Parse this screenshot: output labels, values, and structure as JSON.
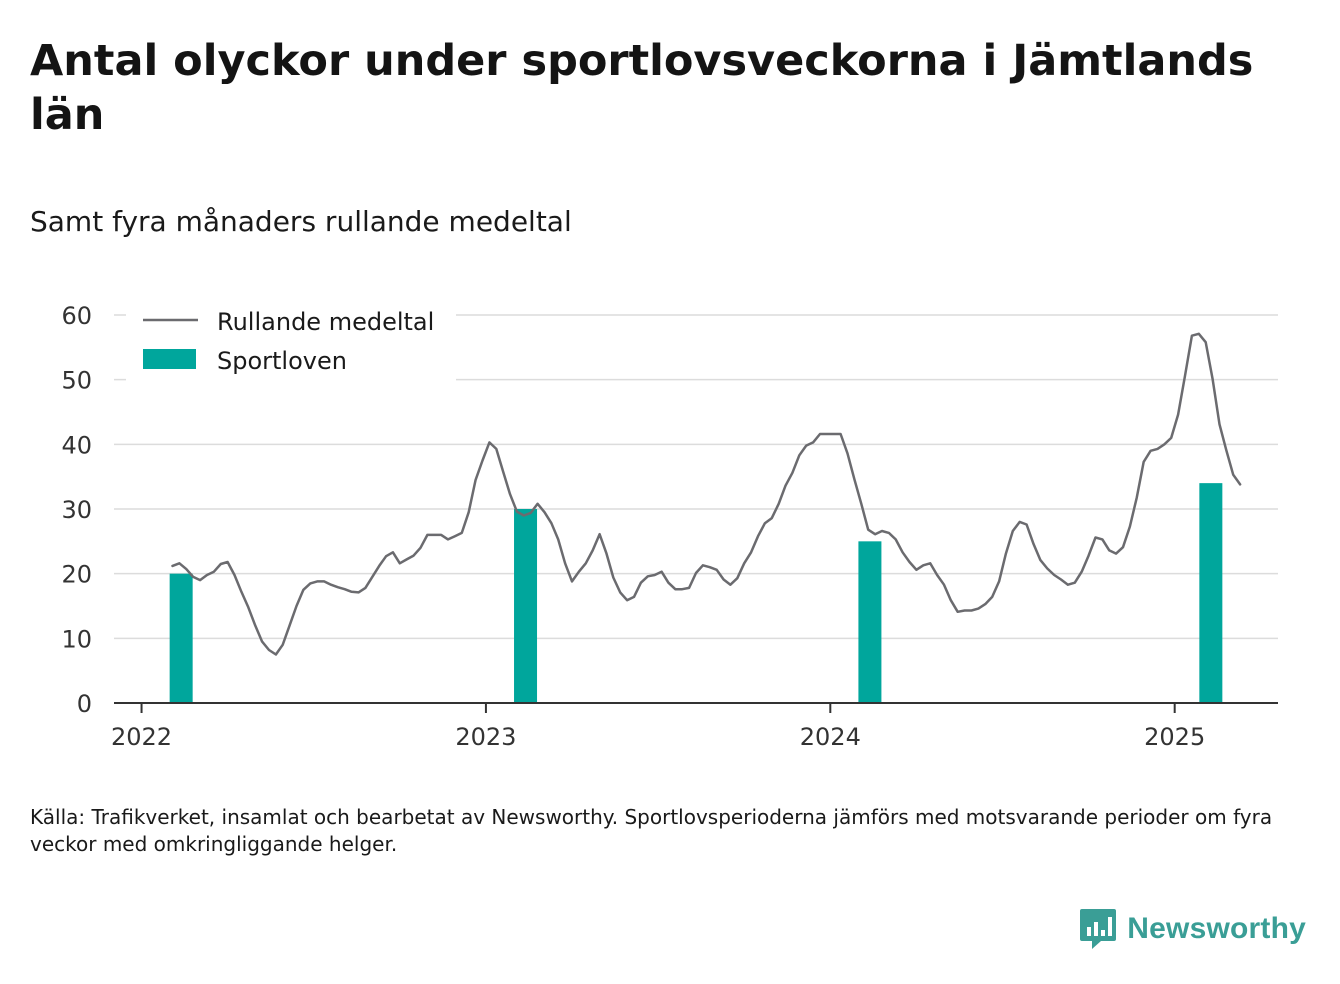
{
  "title": "Antal olyckor under sportlovsveckorna i Jämtlands län",
  "subtitle": "Samt fyra månaders rullande medeltal",
  "source": "Källa: Trafikverket, insamlat och bearbetat av Newsworthy. Sportlovsperioderna jämförs med motsvarande perioder om fyra veckor med omkringliggande helger.",
  "brand": "Newsworthy",
  "colors": {
    "line": "#6b6b6f",
    "bar": "#00a69c",
    "grid": "#dcdcdc",
    "axis": "#333333",
    "brand": "#3a9e96"
  },
  "icons": {
    "brand_logo": "bar-chart-speech-bubble-icon"
  },
  "chart_data": {
    "type": "line",
    "legend": {
      "placement": "top-left",
      "entries": [
        "Rullande medeltal",
        "Sportloven"
      ]
    },
    "grid": true,
    "ylim": [
      0,
      60
    ],
    "yticks": [
      0,
      10,
      20,
      30,
      40,
      50,
      60
    ],
    "xlim": [
      2021.92,
      2025.3
    ],
    "xticks": [
      2022,
      2023,
      2024,
      2025
    ],
    "xtick_labels": [
      "2022",
      "2023",
      "2024",
      "2025"
    ],
    "series": [
      {
        "name": "Rullande medeltal",
        "type": "line",
        "points": [
          [
            2022.09,
            21.2
          ],
          [
            2022.11,
            21.6
          ],
          [
            2022.13,
            20.7
          ],
          [
            2022.15,
            19.5
          ],
          [
            2022.17,
            19.0
          ],
          [
            2022.19,
            19.8
          ],
          [
            2022.21,
            20.3
          ],
          [
            2022.23,
            21.5
          ],
          [
            2022.25,
            21.8
          ],
          [
            2022.27,
            19.8
          ],
          [
            2022.29,
            17.2
          ],
          [
            2022.31,
            14.8
          ],
          [
            2022.33,
            12.0
          ],
          [
            2022.35,
            9.5
          ],
          [
            2022.37,
            8.2
          ],
          [
            2022.39,
            7.5
          ],
          [
            2022.41,
            9.0
          ],
          [
            2022.43,
            12.0
          ],
          [
            2022.45,
            15.0
          ],
          [
            2022.47,
            17.5
          ],
          [
            2022.49,
            18.5
          ],
          [
            2022.51,
            18.8
          ],
          [
            2022.53,
            18.8
          ],
          [
            2022.55,
            18.3
          ],
          [
            2022.57,
            17.9
          ],
          [
            2022.59,
            17.6
          ],
          [
            2022.61,
            17.2
          ],
          [
            2022.63,
            17.1
          ],
          [
            2022.65,
            17.8
          ],
          [
            2022.67,
            19.5
          ],
          [
            2022.69,
            21.2
          ],
          [
            2022.71,
            22.7
          ],
          [
            2022.73,
            23.3
          ],
          [
            2022.75,
            21.6
          ],
          [
            2022.77,
            22.2
          ],
          [
            2022.79,
            22.8
          ],
          [
            2022.81,
            24.0
          ],
          [
            2022.83,
            26.0
          ],
          [
            2022.85,
            26.0
          ],
          [
            2022.87,
            26.0
          ],
          [
            2022.89,
            25.3
          ],
          [
            2022.91,
            25.8
          ],
          [
            2022.93,
            26.3
          ],
          [
            2022.95,
            29.5
          ],
          [
            2022.97,
            34.5
          ],
          [
            2022.99,
            37.5
          ],
          [
            2023.01,
            40.3
          ],
          [
            2023.03,
            39.3
          ],
          [
            2023.05,
            35.8
          ],
          [
            2023.07,
            32.3
          ],
          [
            2023.09,
            29.6
          ],
          [
            2023.11,
            29.0
          ],
          [
            2023.13,
            29.4
          ],
          [
            2023.15,
            30.8
          ],
          [
            2023.17,
            29.5
          ],
          [
            2023.19,
            27.8
          ],
          [
            2023.21,
            25.3
          ],
          [
            2023.23,
            21.6
          ],
          [
            2023.25,
            18.8
          ],
          [
            2023.27,
            20.3
          ],
          [
            2023.29,
            21.6
          ],
          [
            2023.31,
            23.6
          ],
          [
            2023.33,
            26.1
          ],
          [
            2023.35,
            23.1
          ],
          [
            2023.37,
            19.4
          ],
          [
            2023.39,
            17.1
          ],
          [
            2023.41,
            15.9
          ],
          [
            2023.43,
            16.4
          ],
          [
            2023.45,
            18.6
          ],
          [
            2023.47,
            19.6
          ],
          [
            2023.49,
            19.8
          ],
          [
            2023.51,
            20.3
          ],
          [
            2023.53,
            18.6
          ],
          [
            2023.55,
            17.6
          ],
          [
            2023.57,
            17.6
          ],
          [
            2023.59,
            17.8
          ],
          [
            2023.61,
            20.1
          ],
          [
            2023.63,
            21.3
          ],
          [
            2023.65,
            21.0
          ],
          [
            2023.67,
            20.6
          ],
          [
            2023.69,
            19.1
          ],
          [
            2023.71,
            18.3
          ],
          [
            2023.73,
            19.3
          ],
          [
            2023.75,
            21.6
          ],
          [
            2023.77,
            23.3
          ],
          [
            2023.79,
            25.8
          ],
          [
            2023.81,
            27.8
          ],
          [
            2023.83,
            28.6
          ],
          [
            2023.85,
            30.8
          ],
          [
            2023.87,
            33.6
          ],
          [
            2023.89,
            35.6
          ],
          [
            2023.91,
            38.3
          ],
          [
            2023.93,
            39.8
          ],
          [
            2023.95,
            40.3
          ],
          [
            2023.97,
            41.6
          ],
          [
            2023.99,
            41.6
          ],
          [
            2024.01,
            41.6
          ],
          [
            2024.03,
            41.6
          ],
          [
            2024.05,
            38.6
          ],
          [
            2024.07,
            34.6
          ],
          [
            2024.09,
            30.8
          ],
          [
            2024.11,
            26.8
          ],
          [
            2024.13,
            26.1
          ],
          [
            2024.15,
            26.6
          ],
          [
            2024.17,
            26.3
          ],
          [
            2024.19,
            25.3
          ],
          [
            2024.21,
            23.3
          ],
          [
            2024.23,
            21.8
          ],
          [
            2024.25,
            20.6
          ],
          [
            2024.27,
            21.3
          ],
          [
            2024.29,
            21.6
          ],
          [
            2024.31,
            19.8
          ],
          [
            2024.33,
            18.3
          ],
          [
            2024.35,
            15.9
          ],
          [
            2024.37,
            14.1
          ],
          [
            2024.39,
            14.3
          ],
          [
            2024.41,
            14.3
          ],
          [
            2024.43,
            14.6
          ],
          [
            2024.45,
            15.3
          ],
          [
            2024.47,
            16.4
          ],
          [
            2024.49,
            18.8
          ],
          [
            2024.51,
            23.1
          ],
          [
            2024.53,
            26.6
          ],
          [
            2024.55,
            28.0
          ],
          [
            2024.57,
            27.6
          ],
          [
            2024.59,
            24.6
          ],
          [
            2024.61,
            22.1
          ],
          [
            2024.63,
            20.8
          ],
          [
            2024.65,
            19.8
          ],
          [
            2024.67,
            19.1
          ],
          [
            2024.69,
            18.3
          ],
          [
            2024.71,
            18.6
          ],
          [
            2024.73,
            20.3
          ],
          [
            2024.75,
            22.8
          ],
          [
            2024.77,
            25.6
          ],
          [
            2024.79,
            25.3
          ],
          [
            2024.81,
            23.6
          ],
          [
            2024.83,
            23.1
          ],
          [
            2024.85,
            24.1
          ],
          [
            2024.87,
            27.3
          ],
          [
            2024.89,
            31.8
          ],
          [
            2024.91,
            37.3
          ],
          [
            2024.93,
            39.0
          ],
          [
            2024.95,
            39.3
          ],
          [
            2024.97,
            40.0
          ],
          [
            2024.99,
            41.0
          ],
          [
            2025.01,
            44.6
          ],
          [
            2025.03,
            50.6
          ],
          [
            2025.05,
            56.8
          ],
          [
            2025.07,
            57.1
          ],
          [
            2025.09,
            55.8
          ],
          [
            2025.11,
            50.1
          ],
          [
            2025.13,
            43.1
          ],
          [
            2025.15,
            39.1
          ],
          [
            2025.17,
            35.3
          ],
          [
            2025.19,
            33.8
          ]
        ]
      },
      {
        "name": "Sportloven",
        "type": "bar",
        "x": [
          2022.115,
          2023.115,
          2024.115,
          2025.105
        ],
        "values": [
          20,
          30,
          25,
          34
        ]
      }
    ]
  }
}
